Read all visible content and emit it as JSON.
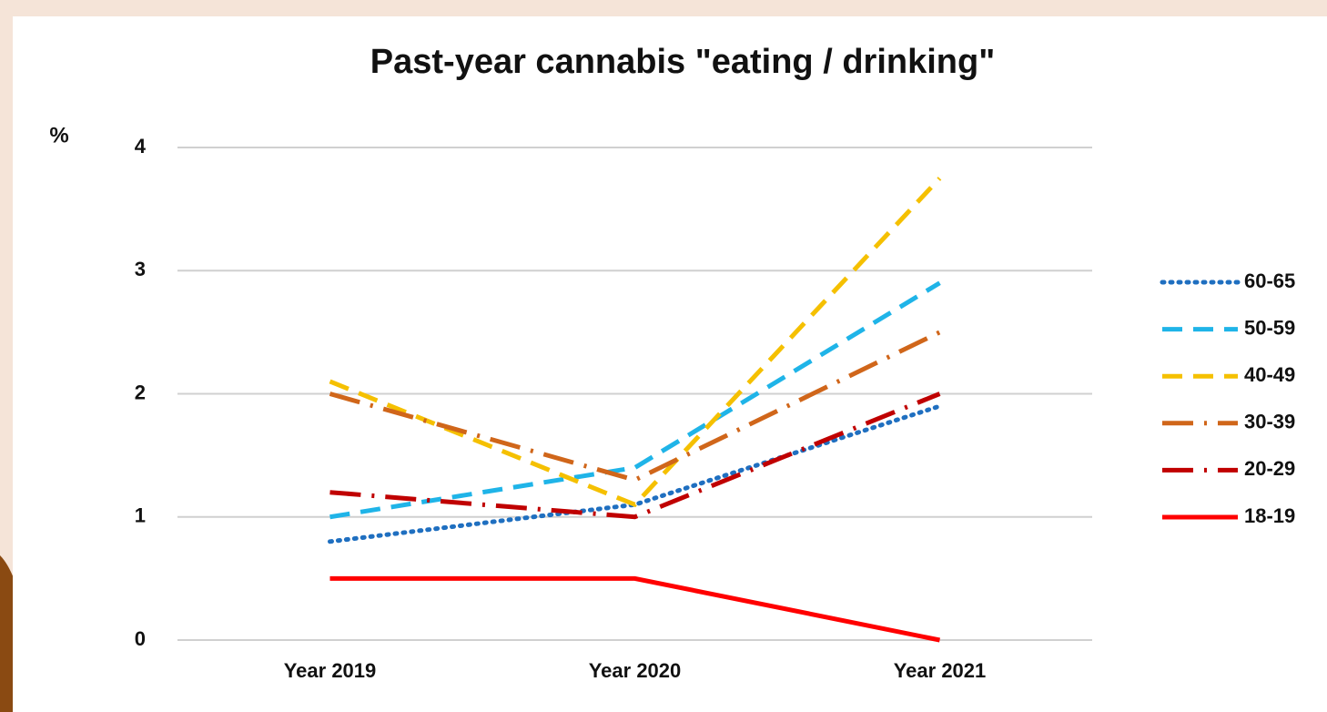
{
  "chart_data": {
    "type": "line",
    "title": "Past-year cannabis \"eating / drinking\"",
    "y_label": "%",
    "categories": [
      "Year 2019",
      "Year 2020",
      "Year 2021"
    ],
    "ylim": [
      0,
      4
    ],
    "yticks": [
      0,
      1,
      2,
      3,
      4
    ],
    "grid": true,
    "legend": "right",
    "series": [
      {
        "name": "60-65",
        "color": "#1f6fc0",
        "dash": "dot",
        "values": [
          0.8,
          1.1,
          1.9
        ]
      },
      {
        "name": "50-59",
        "color": "#1fb4e8",
        "dash": "dash",
        "values": [
          1.0,
          1.4,
          2.9
        ]
      },
      {
        "name": "40-49",
        "color": "#f5c000",
        "dash": "dash",
        "values": [
          2.1,
          1.1,
          3.75
        ]
      },
      {
        "name": "30-39",
        "color": "#d0661a",
        "dash": "dashdot",
        "values": [
          2.0,
          1.3,
          2.5
        ]
      },
      {
        "name": "20-29",
        "color": "#c00000",
        "dash": "dashdot",
        "values": [
          1.2,
          1.0,
          2.0
        ]
      },
      {
        "name": "18-19",
        "color": "#ff0000",
        "dash": "solid",
        "values": [
          0.5,
          0.5,
          0.0
        ]
      }
    ]
  }
}
